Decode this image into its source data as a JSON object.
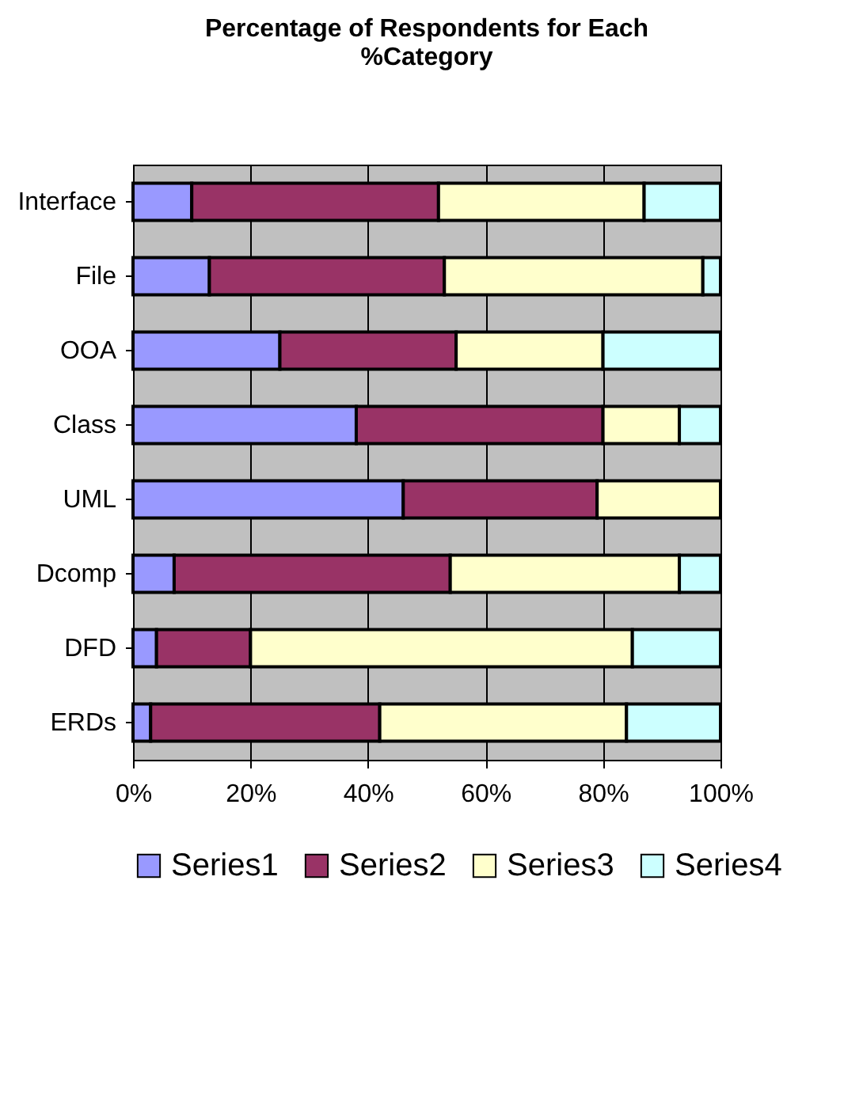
{
  "chart_data": {
    "type": "bar",
    "orientation": "horizontal",
    "stacked": true,
    "title": "Percentage of Respondents for Each %Category",
    "categories": [
      "Interface",
      "File",
      "OOA",
      "Class",
      "UML",
      "Dcomp",
      "DFD",
      "ERDs"
    ],
    "series": [
      {
        "name": "Series1",
        "color": "#9999ff",
        "values": [
          10,
          13,
          25,
          38,
          46,
          7,
          4,
          3
        ]
      },
      {
        "name": "Series2",
        "color": "#993366",
        "values": [
          42,
          40,
          30,
          42,
          33,
          47,
          16,
          39
        ]
      },
      {
        "name": "Series3",
        "color": "#ffffcc",
        "values": [
          35,
          44,
          25,
          13,
          21,
          39,
          65,
          42
        ]
      },
      {
        "name": "Series4",
        "color": "#ccffff",
        "values": [
          13,
          3,
          20,
          7,
          null,
          7,
          15,
          16
        ]
      }
    ],
    "xlim": [
      0,
      100
    ],
    "xticks": [
      {
        "value": 0,
        "label": "0%"
      },
      {
        "value": 20,
        "label": "20%"
      },
      {
        "value": 40,
        "label": "40%"
      },
      {
        "value": 60,
        "label": "60%"
      },
      {
        "value": 80,
        "label": "80%"
      },
      {
        "value": 100,
        "label": "100%"
      }
    ],
    "grid": "x",
    "legend": "bottom"
  }
}
